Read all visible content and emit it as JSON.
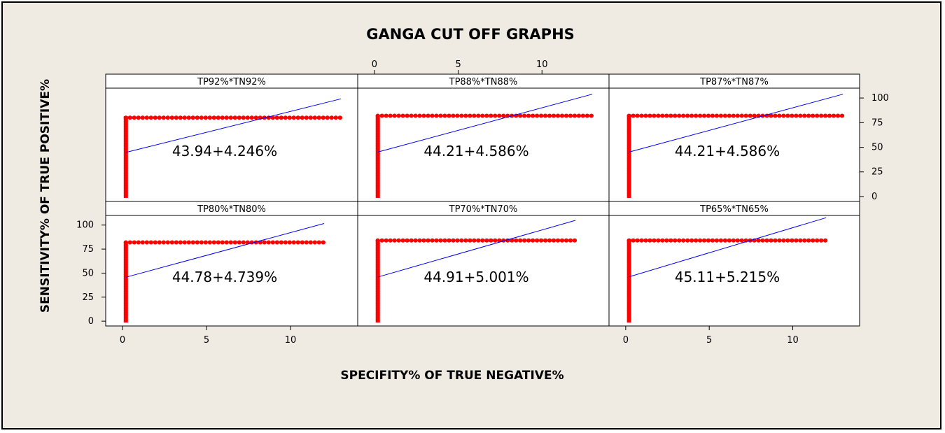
{
  "chart_data": {
    "type": "scatter",
    "title": "GANGA CUT OFF GRAPHS",
    "xlabel": "SPECIFITY% OF TRUE NEGATIVE%",
    "ylabel": "SENSITIVITY% OF TRUE POSITIVE%",
    "x_ticks": [
      0,
      5,
      10
    ],
    "y_ticks": [
      0,
      25,
      50,
      75,
      100
    ],
    "xlim": [
      -1,
      14
    ],
    "ylim": [
      -5,
      110
    ],
    "grid": false,
    "colors": {
      "points": "#ff0000",
      "line": "#0000ff"
    },
    "panels": [
      {
        "label": "TP92%*TN92%",
        "equation": "43.94+4.246%",
        "intercept": 43.94,
        "slope": 4.246,
        "x_max": 13,
        "y_level": 80,
        "vertical_x": 0.2
      },
      {
        "label": "TP88%*TN88%",
        "equation": "44.21+4.586%",
        "intercept": 44.21,
        "slope": 4.586,
        "x_max": 13,
        "y_level": 82,
        "vertical_x": 0.2
      },
      {
        "label": "TP87%*TN87%",
        "equation": "44.21+4.586%",
        "intercept": 44.21,
        "slope": 4.586,
        "x_max": 13,
        "y_level": 82,
        "vertical_x": 0.2
      },
      {
        "label": "TP80%*TN80%",
        "equation": "44.78+4.739%",
        "intercept": 44.78,
        "slope": 4.739,
        "x_max": 12,
        "y_level": 82,
        "vertical_x": 0.2
      },
      {
        "label": "TP70%*TN70%",
        "equation": "44.91+5.001%",
        "intercept": 44.91,
        "slope": 5.001,
        "x_max": 12,
        "y_level": 84,
        "vertical_x": 0.2
      },
      {
        "label": "TP65%*TN65%",
        "equation": "45.11+5.215%",
        "intercept": 45.11,
        "slope": 5.215,
        "x_max": 12,
        "y_level": 84,
        "vertical_x": 0.2
      }
    ]
  }
}
